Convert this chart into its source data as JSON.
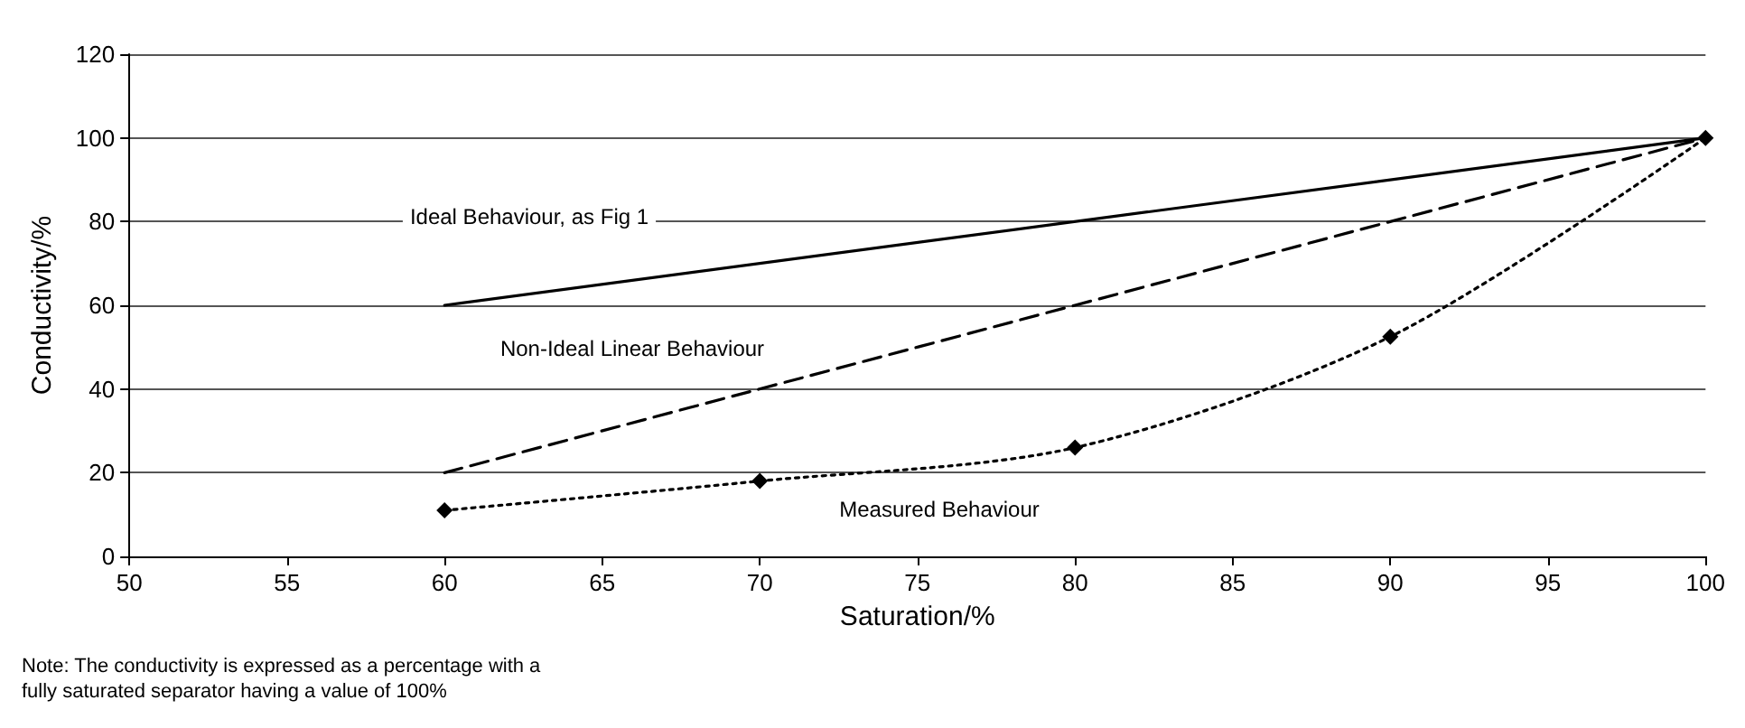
{
  "chart_data": {
    "type": "line",
    "xlabel": "Saturation/%",
    "ylabel": "Conductivity/%",
    "xlim": [
      50,
      100
    ],
    "xticks": [
      50,
      55,
      60,
      65,
      70,
      75,
      80,
      85,
      90,
      95,
      100
    ],
    "ylim": [
      0,
      120
    ],
    "yticks": [
      0,
      20,
      40,
      60,
      80,
      100,
      120
    ],
    "grid": "y",
    "series": [
      {
        "color": "#000000",
        "x": [
          60,
          100
        ],
        "values": [
          60,
          100
        ],
        "line_style": "solid"
      },
      {
        "color": "#000000",
        "x": [
          60,
          100
        ],
        "values": [
          20,
          100
        ],
        "line_style": "dashed"
      },
      {
        "color": "#000000",
        "x": [
          60,
          70,
          80,
          90,
          100
        ],
        "values": [
          11,
          18,
          26,
          52.5,
          100
        ],
        "line_style": "dotted",
        "marker": "diamond"
      }
    ],
    "annotations": [
      "Ideal Behaviour, as Fig 1",
      "Non-Ideal Linear Behaviour",
      "Measured Behaviour",
      "Note: The conductivity is expressed as a percentage with a fully saturated separator having a value of 100%"
    ]
  }
}
